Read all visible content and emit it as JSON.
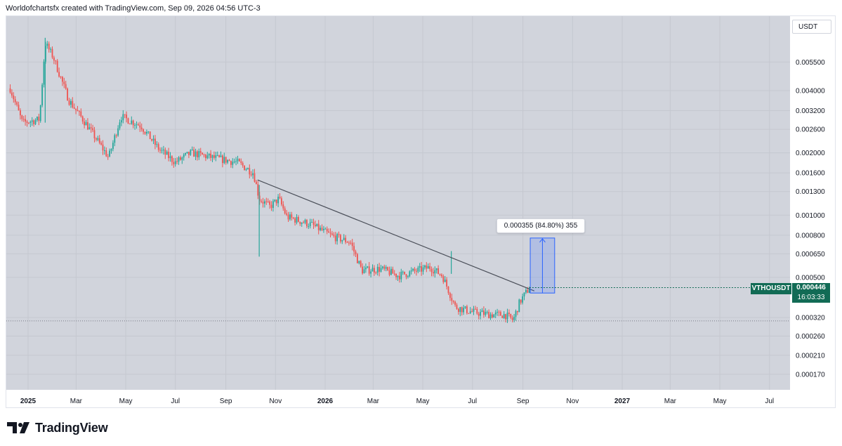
{
  "header": {
    "title": "Worldofchartsfx created with TradingView.com, Sep 09, 2026 04:56 UTC-3"
  },
  "currency": "USDT",
  "symbol": {
    "ticker": "VTHOUSDT",
    "last_price": "0.000446",
    "countdown": "16:03:33"
  },
  "measure_tool": {
    "label": "0.000355 (84.80%) 355"
  },
  "footer": {
    "brand": "TradingView"
  },
  "colors": {
    "plot_bg": "#d1d4dc",
    "up": "#26a69a",
    "down": "#ef5350",
    "badge": "#126b55",
    "measure": "#2962ff"
  },
  "chart_data": {
    "type": "candlestick",
    "scale": "log",
    "ylim": [
      0.00015,
      0.0072
    ],
    "y_ticks": [
      "0.005500",
      "0.004000",
      "0.003200",
      "0.002600",
      "0.002000",
      "0.001600",
      "0.001300",
      "0.001000",
      "0.000800",
      "0.000650",
      "0.000500",
      "0.000320",
      "0.000260",
      "0.000210",
      "0.000170"
    ],
    "x_ticks": [
      {
        "label": "2025",
        "date": "2025-01",
        "bold": true
      },
      {
        "label": "Mar",
        "date": "2025-03"
      },
      {
        "label": "May",
        "date": "2025-05"
      },
      {
        "label": "Jul",
        "date": "2025-07"
      },
      {
        "label": "Sep",
        "date": "2025-09"
      },
      {
        "label": "Nov",
        "date": "2025-11"
      },
      {
        "label": "2026",
        "date": "2026-01",
        "bold": true
      },
      {
        "label": "Mar",
        "date": "2026-03"
      },
      {
        "label": "May",
        "date": "2026-05"
      },
      {
        "label": "Jul",
        "date": "2026-07"
      },
      {
        "label": "Sep",
        "date": "2026-09"
      },
      {
        "label": "Nov",
        "date": "2026-11"
      },
      {
        "label": "2027",
        "date": "2027-01",
        "bold": true
      },
      {
        "label": "Mar",
        "date": "2027-03"
      },
      {
        "label": "May",
        "date": "2027-05"
      },
      {
        "label": "Jul",
        "date": "2027-07"
      }
    ],
    "price_path": [
      {
        "date": "2024-12-10",
        "price": 0.0041
      },
      {
        "date": "2024-12-25",
        "price": 0.0028
      },
      {
        "date": "2025-01-15",
        "price": 0.0029
      },
      {
        "date": "2025-01-22",
        "price": 0.0068
      },
      {
        "date": "2025-02-01",
        "price": 0.0058
      },
      {
        "date": "2025-02-20",
        "price": 0.0036
      },
      {
        "date": "2025-03-15",
        "price": 0.0027
      },
      {
        "date": "2025-04-10",
        "price": 0.0019
      },
      {
        "date": "2025-04-25",
        "price": 0.003
      },
      {
        "date": "2025-05-20",
        "price": 0.0027
      },
      {
        "date": "2025-06-10",
        "price": 0.0021
      },
      {
        "date": "2025-07-01",
        "price": 0.0018
      },
      {
        "date": "2025-07-20",
        "price": 0.002
      },
      {
        "date": "2025-08-15",
        "price": 0.0019
      },
      {
        "date": "2025-09-15",
        "price": 0.0018
      },
      {
        "date": "2025-10-05",
        "price": 0.0016
      },
      {
        "date": "2025-10-12",
        "price": 0.0012
      },
      {
        "date": "2025-10-25",
        "price": 0.0011
      },
      {
        "date": "2025-11-05",
        "price": 0.0012
      },
      {
        "date": "2025-11-15",
        "price": 0.00098
      },
      {
        "date": "2025-12-15",
        "price": 0.0009
      },
      {
        "date": "2026-01-10",
        "price": 0.00079
      },
      {
        "date": "2026-02-01",
        "price": 0.00074
      },
      {
        "date": "2026-02-15",
        "price": 0.00054
      },
      {
        "date": "2026-03-10",
        "price": 0.00055
      },
      {
        "date": "2026-04-01",
        "price": 0.00051
      },
      {
        "date": "2026-05-10",
        "price": 0.00056
      },
      {
        "date": "2026-05-25",
        "price": 0.00051
      },
      {
        "date": "2026-06-10",
        "price": 0.00036
      },
      {
        "date": "2026-07-01",
        "price": 0.00034
      },
      {
        "date": "2026-07-25",
        "price": 0.00033
      },
      {
        "date": "2026-08-10",
        "price": 0.00033
      },
      {
        "date": "2026-08-20",
        "price": 0.00031
      },
      {
        "date": "2026-08-28",
        "price": 0.00038
      },
      {
        "date": "2026-09-09",
        "price": 0.000446
      }
    ],
    "spikes": [
      {
        "date": "2025-01-22",
        "high": 0.0072,
        "low": 0.0028
      },
      {
        "date": "2025-10-12",
        "high": 0.0014,
        "low": 0.00063
      },
      {
        "date": "2026-06-05",
        "high": 0.00067,
        "low": 0.00052
      }
    ],
    "trendline": {
      "start": {
        "date": "2025-10-10",
        "price": 0.00148
      },
      "end": {
        "date": "2026-09-15",
        "price": 0.00043
      }
    },
    "measure": {
      "from": {
        "date": "2026-09-10",
        "price": 0.00042
      },
      "to": {
        "date": "2026-10-10",
        "price": 0.000775
      }
    },
    "support_line": 0.000308
  }
}
